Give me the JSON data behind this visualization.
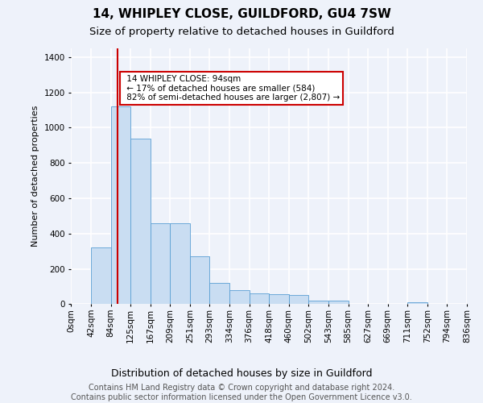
{
  "title1": "14, WHIPLEY CLOSE, GUILDFORD, GU4 7SW",
  "title2": "Size of property relative to detached houses in Guildford",
  "xlabel": "Distribution of detached houses by size in Guildford",
  "ylabel": "Number of detached properties",
  "footer1": "Contains HM Land Registry data © Crown copyright and database right 2024.",
  "footer2": "Contains public sector information licensed under the Open Government Licence v3.0.",
  "bin_labels": [
    "0sqm",
    "42sqm",
    "84sqm",
    "125sqm",
    "167sqm",
    "209sqm",
    "251sqm",
    "293sqm",
    "334sqm",
    "376sqm",
    "418sqm",
    "460sqm",
    "502sqm",
    "543sqm",
    "585sqm",
    "627sqm",
    "669sqm",
    "711sqm",
    "752sqm",
    "794sqm",
    "836sqm"
  ],
  "bar_heights": [
    3,
    320,
    1120,
    940,
    460,
    460,
    270,
    120,
    80,
    60,
    55,
    50,
    20,
    18,
    3,
    3,
    3,
    10,
    3,
    3
  ],
  "bar_color": "#c9ddf2",
  "bar_edge_color": "#5a9fd4",
  "property_line_bin": 2.35,
  "property_line_color": "#cc0000",
  "annotation_text": " 14 WHIPLEY CLOSE: 94sqm\n ← 17% of detached houses are smaller (584)\n 82% of semi-detached houses are larger (2,807) →",
  "annotation_box_color": "#ffffff",
  "annotation_box_edge": "#cc0000",
  "ylim": [
    0,
    1450
  ],
  "yticks": [
    0,
    200,
    400,
    600,
    800,
    1000,
    1200,
    1400
  ],
  "bg_color": "#eef2fa",
  "plot_bg_color": "#eef2fa",
  "grid_color": "#ffffff",
  "title1_fontsize": 11,
  "title2_fontsize": 9.5,
  "xlabel_fontsize": 9,
  "ylabel_fontsize": 8,
  "tick_fontsize": 7.5,
  "footer_fontsize": 7
}
